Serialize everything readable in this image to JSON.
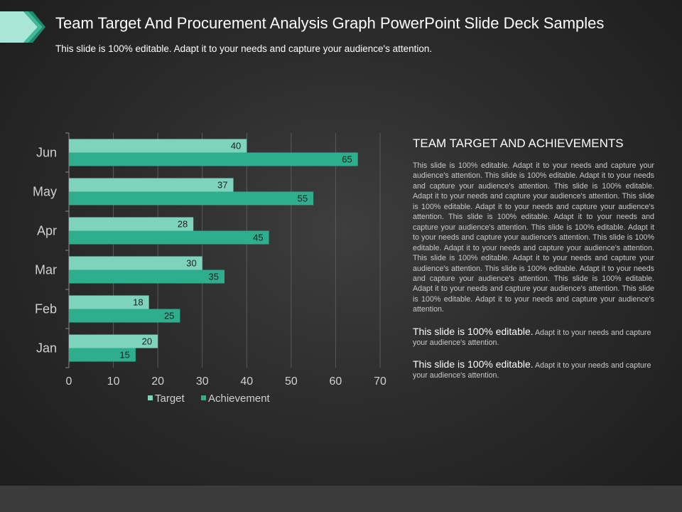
{
  "slide": {
    "title": "Team Target And Procurement Analysis Graph PowerPoint Slide Deck Samples",
    "subtitle": "This slide is 100% editable. Adapt it to your needs and capture your audience's attention."
  },
  "colors": {
    "target": "#7dd3bb",
    "achievement": "#2eae8c",
    "axis": "#8a8a8a",
    "gridline": "#5a5a5a",
    "chevron_light": "#a8e6d6",
    "chevron_mid": "#3fb998",
    "chevron_dark": "#1f8a6c"
  },
  "chart_data": {
    "type": "bar",
    "orientation": "horizontal",
    "categories": [
      "Jan",
      "Feb",
      "Mar",
      "Apr",
      "May",
      "Jun"
    ],
    "series": [
      {
        "name": "Target",
        "values": [
          20,
          18,
          30,
          28,
          37,
          40
        ]
      },
      {
        "name": "Achievement",
        "values": [
          15,
          25,
          35,
          45,
          55,
          65
        ]
      }
    ],
    "xlim": [
      0,
      70
    ],
    "xticks": [
      0,
      10,
      20,
      30,
      40,
      50,
      60,
      70
    ],
    "data_labels": true,
    "grid": true,
    "legend": "bottom"
  },
  "panel": {
    "heading": "TEAM TARGET AND ACHIEVEMENTS",
    "body": "This slide is 100% editable. Adapt it to your needs and capture your audience's attention. This slide is 100% editable. Adapt it to your needs and capture your audience's attention. This slide is 100% editable. Adapt it to your needs and capture your audience's attention. This slide is 100% editable. Adapt it to your needs and capture your audience's attention. This slide is 100% editable. Adapt it to your needs and capture your audience's attention. This slide is 100% editable. Adapt it to your needs and capture your audience's attention. This slide is 100% editable. Adapt it to your needs and capture your audience's attention. This slide is 100% editable. Adapt it to your needs and capture your audience's attention. This slide is 100% editable. Adapt it to your needs and capture your audience's attention. This slide is 100% editable. Adapt it to your needs and capture your audience's attention. This slide is 100% editable. Adapt it to your needs and capture your audience's attention.",
    "notes": [
      {
        "lead": "This slide is 100% editable.",
        "rest": "Adapt it to your needs and capture your audience's attention."
      },
      {
        "lead": "This slide is 100% editable.",
        "rest": "Adapt it to your needs and capture your audience's attention."
      }
    ]
  }
}
